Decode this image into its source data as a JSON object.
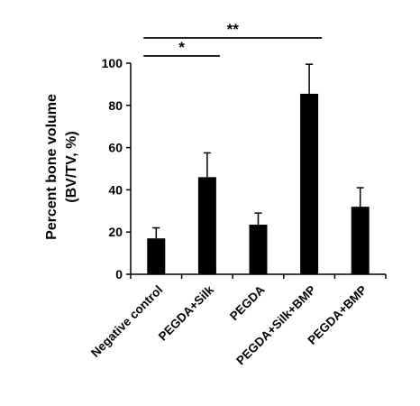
{
  "chart_data": {
    "type": "bar",
    "ylabel_lines": [
      "Percent bone volume",
      "(BV/TV, %)"
    ],
    "categories": [
      "Negative control",
      "PEGDA+Silk",
      "PEGDA",
      "PEGDA+Silk+BMP",
      "PEGDA+BMP"
    ],
    "values": [
      17,
      46,
      23.5,
      85.5,
      32
    ],
    "errors": [
      5,
      11.5,
      5.5,
      14,
      9
    ],
    "ylim": [
      0,
      100
    ],
    "yticks": [
      0,
      20,
      40,
      60,
      80,
      100
    ],
    "bar_color": "#000000",
    "significance": [
      {
        "from": 0,
        "to": 1,
        "label": "*"
      },
      {
        "from": 0,
        "to": 3,
        "label": "**"
      }
    ]
  }
}
